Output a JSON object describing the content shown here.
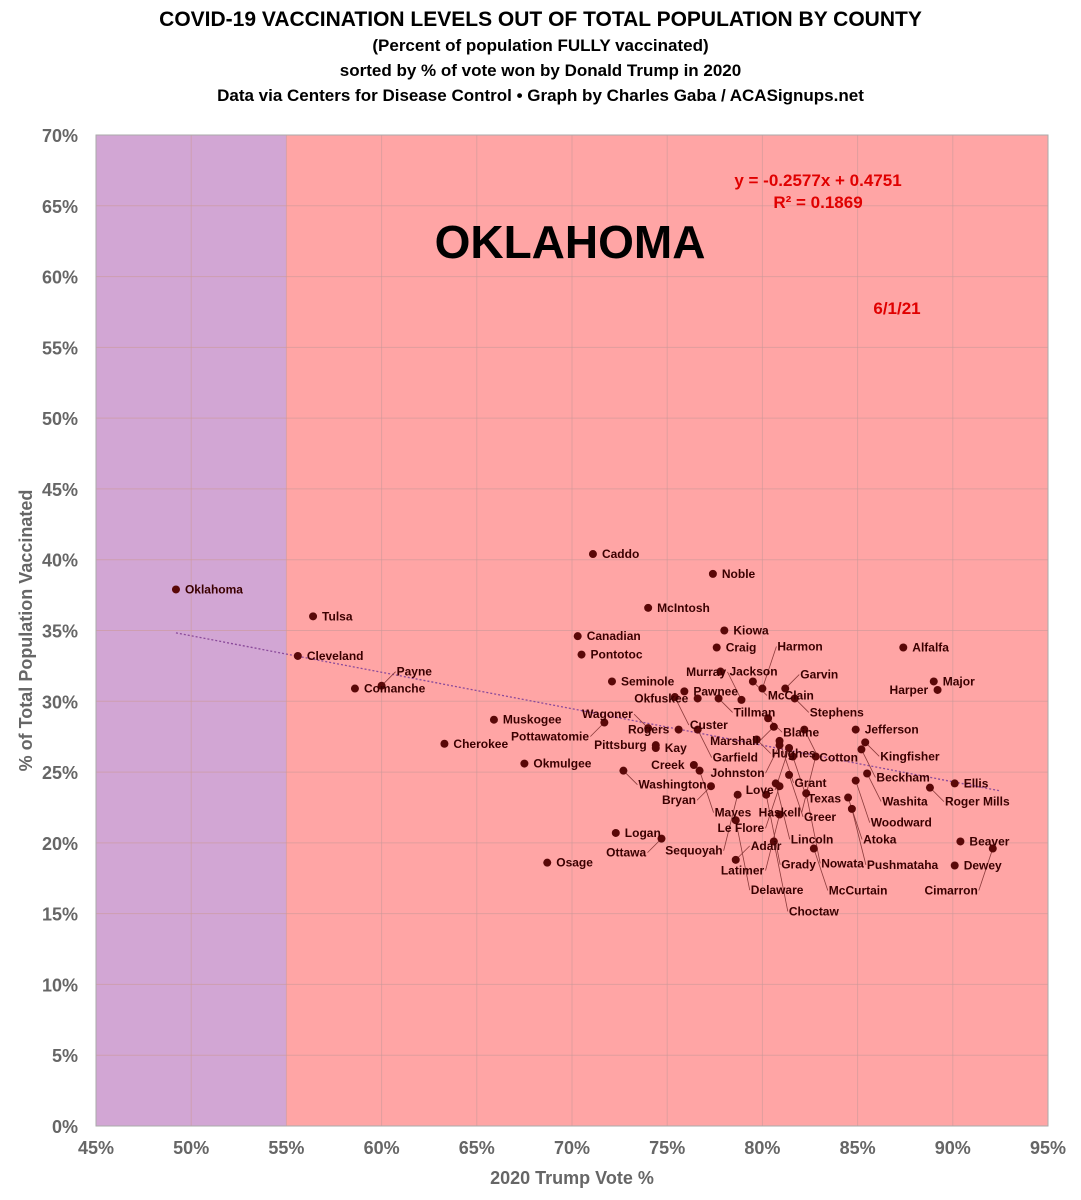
{
  "chart_data": {
    "type": "scatter",
    "title": "COVID-19 VACCINATION LEVELS OUT OF TOTAL POPULATION BY COUNTY",
    "subtitle": "(Percent of population FULLY vaccinated)",
    "subtitle2": "sorted by % of vote won by Donald Trump in 2020",
    "credit": "Data via Centers for Disease Control • Graph by Charles Gaba / ACASignups.net",
    "state_label": "OKLAHOMA",
    "date_label": "6/1/21",
    "equation": "y = -0.2577x + 0.4751",
    "r2": "R² = 0.1869",
    "xlabel": "2020 Trump Vote %",
    "ylabel": "% of Total Population Vaccinated",
    "xlim": [
      45,
      95
    ],
    "ylim": [
      0,
      70
    ],
    "xticks": [
      "45%",
      "50%",
      "55%",
      "60%",
      "65%",
      "70%",
      "75%",
      "80%",
      "85%",
      "90%",
      "95%"
    ],
    "yticks": [
      "0%",
      "5%",
      "10%",
      "15%",
      "20%",
      "25%",
      "30%",
      "35%",
      "40%",
      "45%",
      "50%",
      "55%",
      "60%",
      "65%",
      "70%"
    ],
    "grid": true,
    "regions": [
      {
        "from": 45,
        "to": 55,
        "color": "#D2A6D4"
      },
      {
        "from": 55,
        "to": 95,
        "color": "#FFA5A5"
      }
    ],
    "trendline": {
      "slope": -0.2577,
      "intercept": 0.4751,
      "color": "#8a4a9a"
    },
    "colors": {
      "point": "#5a0808",
      "label": "#3a0000",
      "annotation": "#e00000"
    },
    "points": [
      {
        "name": "Oklahoma",
        "x": 49.2,
        "y": 37.9
      },
      {
        "name": "Tulsa",
        "x": 56.4,
        "y": 36.0
      },
      {
        "name": "Cleveland",
        "x": 55.6,
        "y": 33.2
      },
      {
        "name": "Comanche",
        "x": 58.6,
        "y": 30.9
      },
      {
        "name": "Payne",
        "x": 60.0,
        "y": 31.1
      },
      {
        "name": "Cherokee",
        "x": 63.3,
        "y": 27.0
      },
      {
        "name": "Muskogee",
        "x": 65.9,
        "y": 28.7
      },
      {
        "name": "Okmulgee",
        "x": 67.5,
        "y": 25.6
      },
      {
        "name": "Osage",
        "x": 68.7,
        "y": 18.6
      },
      {
        "name": "Logan",
        "x": 72.3,
        "y": 20.7
      },
      {
        "name": "Caddo",
        "x": 71.1,
        "y": 40.4
      },
      {
        "name": "Noble",
        "x": 77.4,
        "y": 39.0
      },
      {
        "name": "McIntosh",
        "x": 74.0,
        "y": 36.6
      },
      {
        "name": "Kiowa",
        "x": 78.0,
        "y": 35.0
      },
      {
        "name": "Canadian",
        "x": 70.3,
        "y": 34.6
      },
      {
        "name": "Craig",
        "x": 77.6,
        "y": 33.8
      },
      {
        "name": "Pontotoc",
        "x": 70.5,
        "y": 33.3
      },
      {
        "name": "Jackson",
        "x": 77.8,
        "y": 32.1
      },
      {
        "name": "Seminole",
        "x": 72.1,
        "y": 31.4
      },
      {
        "name": "Pawnee",
        "x": 75.9,
        "y": 30.7
      },
      {
        "name": "Okfuskee",
        "x": 76.6,
        "y": 30.2
      },
      {
        "name": "Custer",
        "x": 75.4,
        "y": 30.3
      },
      {
        "name": "Tillman",
        "x": 77.7,
        "y": 30.2
      },
      {
        "name": "Murray",
        "x": 78.9,
        "y": 30.1
      },
      {
        "name": "McClain",
        "x": 79.5,
        "y": 31.4
      },
      {
        "name": "Harmon",
        "x": 80.0,
        "y": 30.9
      },
      {
        "name": "Garvin",
        "x": 81.2,
        "y": 30.9
      },
      {
        "name": "Stephens",
        "x": 81.7,
        "y": 30.2
      },
      {
        "name": "Pottawatomie",
        "x": 71.7,
        "y": 28.5
      },
      {
        "name": "Blaine",
        "x": 80.3,
        "y": 28.8
      },
      {
        "name": "Marshall",
        "x": 80.6,
        "y": 28.2
      },
      {
        "name": "Cotton",
        "x": 82.2,
        "y": 28.0
      },
      {
        "name": "Jefferson",
        "x": 84.9,
        "y": 28.0
      },
      {
        "name": "Wagoner",
        "x": 74.0,
        "y": 28.1
      },
      {
        "name": "Rogers",
        "x": 75.6,
        "y": 28.0
      },
      {
        "name": "Garfield",
        "x": 76.6,
        "y": 28.0
      },
      {
        "name": "Hughes",
        "x": 79.7,
        "y": 27.3
      },
      {
        "name": "Grant",
        "x": 80.9,
        "y": 27.2
      },
      {
        "name": "Kingfisher",
        "x": 85.4,
        "y": 27.1
      },
      {
        "name": "Beckham",
        "x": 85.2,
        "y": 26.6
      },
      {
        "name": "Pittsburg",
        "x": 74.4,
        "y": 26.9
      },
      {
        "name": "Kay",
        "x": 74.4,
        "y": 26.7
      },
      {
        "name": "Johnston",
        "x": 80.9,
        "y": 26.9
      },
      {
        "name": "Love",
        "x": 81.4,
        "y": 26.7
      },
      {
        "name": "Texas",
        "x": 81.6,
        "y": 26.1
      },
      {
        "name": "Haskell",
        "x": 82.8,
        "y": 26.1
      },
      {
        "name": "Creek",
        "x": 76.4,
        "y": 25.5
      },
      {
        "name": "Washington",
        "x": 72.7,
        "y": 25.1
      },
      {
        "name": "Mayes",
        "x": 76.7,
        "y": 25.1
      },
      {
        "name": "Washita",
        "x": 85.5,
        "y": 24.9
      },
      {
        "name": "Greer",
        "x": 81.4,
        "y": 24.8
      },
      {
        "name": "Woodward",
        "x": 84.9,
        "y": 24.4
      },
      {
        "name": "Lincoln",
        "x": 80.7,
        "y": 24.2
      },
      {
        "name": "Le Flore",
        "x": 80.9,
        "y": 24.0
      },
      {
        "name": "Ellis",
        "x": 90.1,
        "y": 24.2
      },
      {
        "name": "Roger Mills",
        "x": 88.8,
        "y": 23.9
      },
      {
        "name": "Bryan",
        "x": 77.3,
        "y": 24.0
      },
      {
        "name": "Sequoyah",
        "x": 78.7,
        "y": 23.4
      },
      {
        "name": "Grady",
        "x": 80.2,
        "y": 23.4
      },
      {
        "name": "Nowata",
        "x": 82.3,
        "y": 23.5
      },
      {
        "name": "Atoka",
        "x": 84.5,
        "y": 23.2
      },
      {
        "name": "Pushmataha",
        "x": 84.7,
        "y": 22.4
      },
      {
        "name": "Latimer",
        "x": 80.9,
        "y": 22.0
      },
      {
        "name": "Delaware",
        "x": 78.6,
        "y": 21.6
      },
      {
        "name": "Ottawa",
        "x": 74.7,
        "y": 20.3
      },
      {
        "name": "Choctaw",
        "x": 80.6,
        "y": 20.1
      },
      {
        "name": "McCurtain",
        "x": 82.7,
        "y": 19.6
      },
      {
        "name": "Beaver",
        "x": 90.4,
        "y": 20.1
      },
      {
        "name": "Cimarron",
        "x": 92.1,
        "y": 19.6
      },
      {
        "name": "Dewey",
        "x": 90.1,
        "y": 18.4
      },
      {
        "name": "Adair",
        "x": 78.6,
        "y": 18.8
      },
      {
        "name": "Alfalfa",
        "x": 87.4,
        "y": 33.8
      },
      {
        "name": "Major",
        "x": 89.0,
        "y": 31.4
      },
      {
        "name": "Harper",
        "x": 89.2,
        "y": 30.8
      }
    ]
  }
}
